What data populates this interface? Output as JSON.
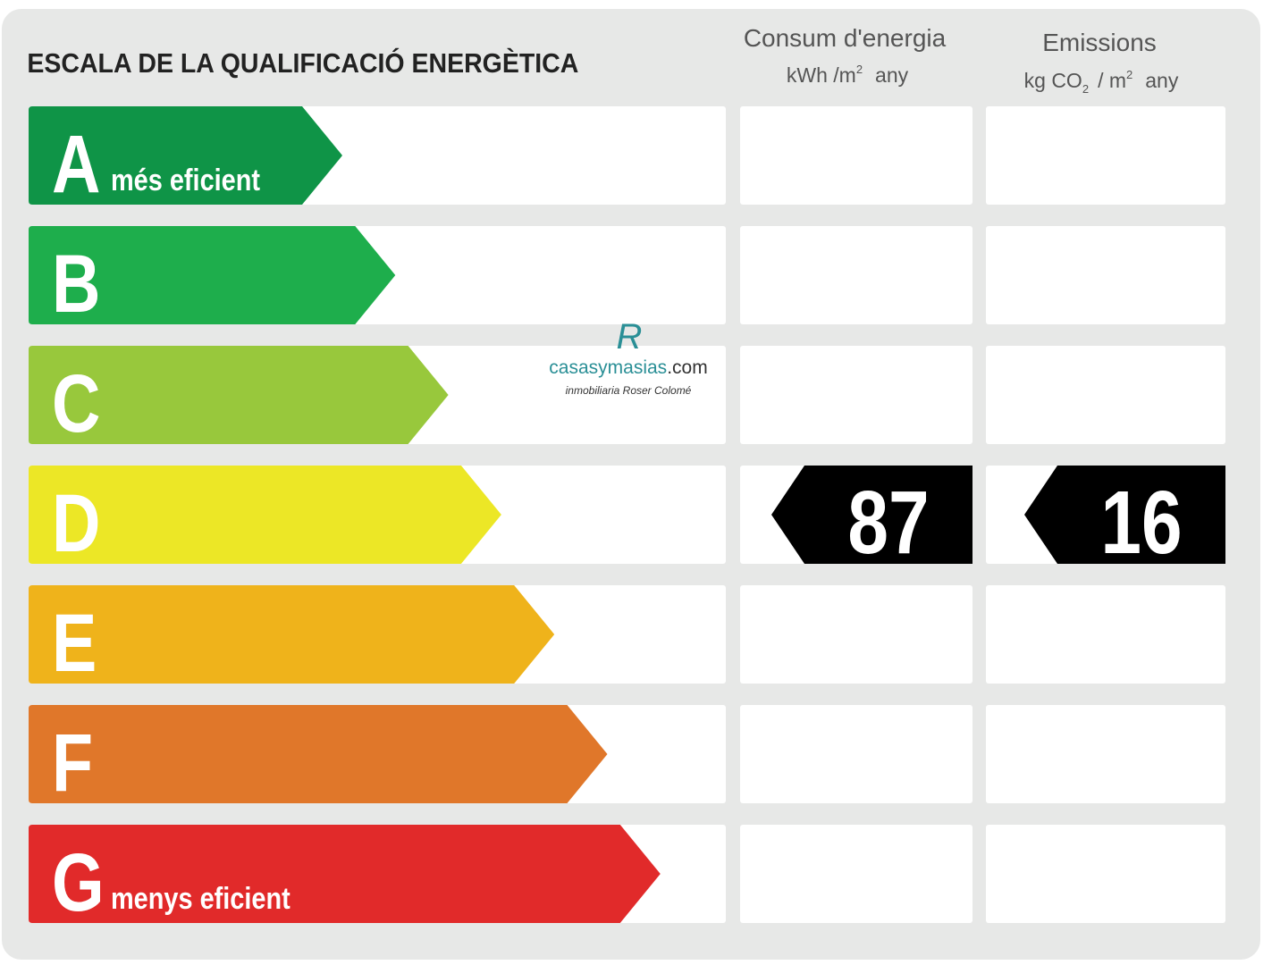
{
  "header": {
    "title": "ESCALA DE LA QUALIFICACIÓ ENERGÈTICA"
  },
  "columns": [
    {
      "title": "Consum d'energia",
      "unit": [
        "kWh /m",
        "2",
        "any"
      ]
    },
    {
      "title": "Emissions",
      "unit": [
        "kg CO",
        "2",
        "/ m",
        "2",
        "any"
      ]
    }
  ],
  "rows": [
    {
      "letter": "A",
      "label": "més eficient",
      "color": "#0f9447"
    },
    {
      "letter": "B",
      "color": "#1eae4c"
    },
    {
      "letter": "C",
      "color": "#98c83c"
    },
    {
      "letter": "D",
      "color": "#ece726",
      "consumption": 87,
      "emissions": 16
    },
    {
      "letter": "E",
      "color": "#efb31b"
    },
    {
      "letter": "F",
      "color": "#e0772a"
    },
    {
      "letter": "G",
      "label": "menys eficient",
      "color": "#e12a2a"
    }
  ],
  "watermark": {
    "logo": "R",
    "name": [
      "casasymasias",
      ".com"
    ],
    "tagline": "inmobiliaria Roser Colomé"
  }
}
